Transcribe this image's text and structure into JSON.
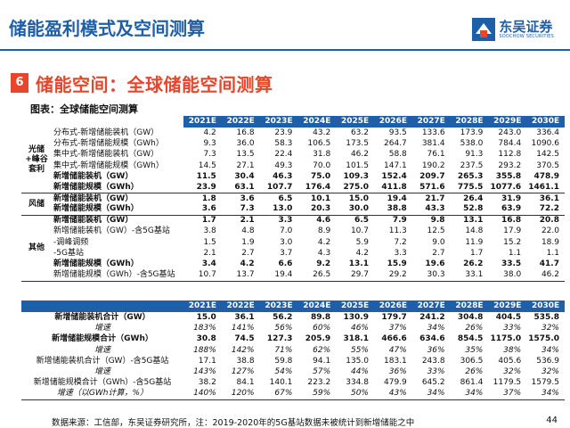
{
  "header": {
    "title": "储能盈利模式及空间测算",
    "brand_name": "东吴证券",
    "brand_sub": "SOOCHOW SECURITIES"
  },
  "section": {
    "number": "6",
    "title": "储能空间：全球储能空间测算"
  },
  "figure_caption": "图表：全球储能空间测算",
  "years": [
    "2021E",
    "2022E",
    "2023E",
    "2024E",
    "2025E",
    "2026E",
    "2027E",
    "2028E",
    "2029E",
    "2030E"
  ],
  "table1": {
    "groups": [
      {
        "label": "光储+峰谷套利",
        "rows": [
          {
            "name": "分布式-新增储能装机（GW）",
            "values": [
              "4.2",
              "16.8",
              "23.9",
              "43.2",
              "63.2",
              "93.5",
              "133.6",
              "173.9",
              "243.0",
              "336.4"
            ],
            "bold": false
          },
          {
            "name": "分布式-新增储能规模（GWh）",
            "values": [
              "9.3",
              "36.0",
              "58.3",
              "106.5",
              "173.5",
              "264.7",
              "381.4",
              "538.0",
              "784.4",
              "1090.6"
            ],
            "bold": false
          },
          {
            "name": "集中式-新增储能装机（GW）",
            "values": [
              "7.3",
              "13.5",
              "22.4",
              "31.8",
              "46.2",
              "58.8",
              "76.1",
              "91.3",
              "112.8",
              "142.5"
            ],
            "bold": false
          },
          {
            "name": "集中式-新增储能规模（GWh）",
            "values": [
              "14.5",
              "27.1",
              "49.3",
              "70.0",
              "101.5",
              "147.1",
              "190.2",
              "237.5",
              "293.2",
              "370.5"
            ],
            "bold": false
          },
          {
            "name": "新增储能装机（GW）",
            "values": [
              "11.5",
              "30.4",
              "46.3",
              "75.0",
              "109.3",
              "152.4",
              "209.7",
              "265.3",
              "355.8",
              "478.9"
            ],
            "bold": true
          },
          {
            "name": "新增储能规模（GWh）",
            "values": [
              "23.9",
              "63.1",
              "107.7",
              "176.4",
              "275.0",
              "411.8",
              "571.6",
              "775.5",
              "1077.6",
              "1461.1"
            ],
            "bold": true
          }
        ]
      },
      {
        "label": "风储",
        "rows": [
          {
            "name": "新增储能装机（GW）",
            "values": [
              "1.8",
              "3.6",
              "6.5",
              "10.1",
              "15.0",
              "19.4",
              "21.7",
              "26.4",
              "31.9",
              "36.1"
            ],
            "bold": true
          },
          {
            "name": "新增储能规模（GWh）",
            "values": [
              "3.6",
              "7.3",
              "13.0",
              "20.3",
              "30.0",
              "38.8",
              "43.3",
              "52.8",
              "63.9",
              "72.2"
            ],
            "bold": true
          }
        ]
      },
      {
        "label": "其他",
        "rows": [
          {
            "name": "新增储能装机（GW）",
            "values": [
              "1.7",
              "2.1",
              "3.3",
              "4.6",
              "6.5",
              "7.9",
              "9.8",
              "13.1",
              "16.8",
              "20.8"
            ],
            "bold": true
          },
          {
            "name": "新增储能装机（GW）-含5G基站",
            "values": [
              "3.8",
              "4.8",
              "7.0",
              "8.9",
              "10.7",
              "11.3",
              "12.5",
              "14.8",
              "17.9",
              "22.0"
            ],
            "bold": false
          },
          {
            "name": "-调峰调频",
            "values": [
              "1.5",
              "1.9",
              "3.0",
              "4.2",
              "5.9",
              "7.2",
              "9.0",
              "11.9",
              "15.2",
              "18.9"
            ],
            "bold": false
          },
          {
            "name": "-5G基站",
            "values": [
              "2.1",
              "2.7",
              "3.7",
              "4.3",
              "4.2",
              "3.3",
              "2.7",
              "1.7",
              "1.1",
              "1.1"
            ],
            "bold": false
          },
          {
            "name": "新增储能规模（GWh）",
            "values": [
              "3.4",
              "4.2",
              "6.6",
              "9.2",
              "13.1",
              "15.9",
              "19.6",
              "26.2",
              "33.5",
              "41.7"
            ],
            "bold": true
          },
          {
            "name": "新增储能规模（GWh）-含5G基站",
            "values": [
              "10.7",
              "13.7",
              "19.4",
              "26.5",
              "29.7",
              "29.2",
              "30.3",
              "33.1",
              "38.0",
              "46.2"
            ],
            "bold": false
          }
        ]
      }
    ]
  },
  "table2": {
    "rows": [
      {
        "name": "新增储能装机合计（GW）",
        "values": [
          "15.0",
          "36.1",
          "56.2",
          "89.8",
          "130.9",
          "179.7",
          "241.2",
          "304.8",
          "404.5",
          "535.8"
        ],
        "style": "bold"
      },
      {
        "name": "增速",
        "values": [
          "183%",
          "141%",
          "56%",
          "60%",
          "46%",
          "37%",
          "34%",
          "26%",
          "33%",
          "32%"
        ],
        "style": "it"
      },
      {
        "name": "新增储能规模合计（GWh）",
        "values": [
          "30.8",
          "74.5",
          "127.3",
          "205.9",
          "318.1",
          "466.6",
          "634.6",
          "854.5",
          "1175.0",
          "1575.0"
        ],
        "style": "bold"
      },
      {
        "name": "增速",
        "values": [
          "188%",
          "142%",
          "71%",
          "62%",
          "55%",
          "47%",
          "36%",
          "35%",
          "38%",
          "34%"
        ],
        "style": "it"
      },
      {
        "name": "新增储能装机合计（GW）-含5G基站",
        "values": [
          "17.1",
          "38.8",
          "59.8",
          "94.1",
          "135.0",
          "183.1",
          "243.8",
          "306.5",
          "405.6",
          "536.9"
        ],
        "style": "normal"
      },
      {
        "name": "增速",
        "values": [
          "143%",
          "127%",
          "54%",
          "57%",
          "44%",
          "36%",
          "33%",
          "26%",
          "32%",
          "32%"
        ],
        "style": "it"
      },
      {
        "name": "新增储能规模合计（GWh）-含5G基站",
        "values": [
          "38.2",
          "84.1",
          "140.1",
          "223.2",
          "334.8",
          "479.9",
          "645.2",
          "861.4",
          "1179.5",
          "1579.5"
        ],
        "style": "normal"
      },
      {
        "name": "增速（以GWh计算，%）",
        "values": [
          "140%",
          "120%",
          "67%",
          "59%",
          "50%",
          "43%",
          "34%",
          "34%",
          "37%",
          "34%"
        ],
        "style": "it"
      }
    ]
  },
  "footer": {
    "note": "数据来源：工信部，东吴证券研究所，注：2019-2020年的5G基站数据未被统计到新增储能之中",
    "page": "44"
  }
}
